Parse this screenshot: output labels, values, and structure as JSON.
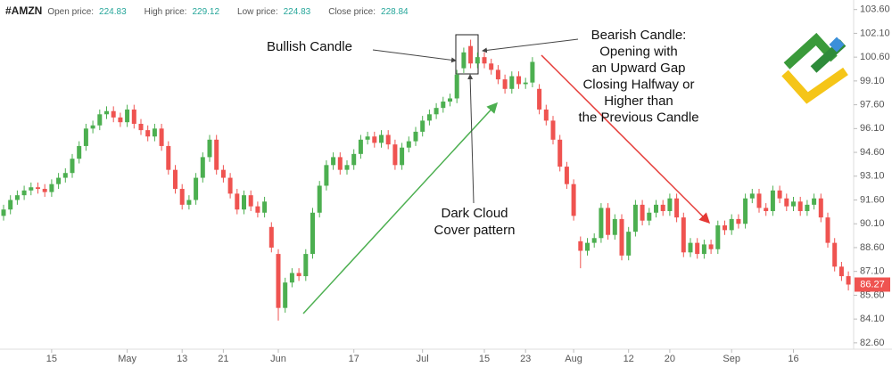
{
  "chart_data": {
    "type": "candlestick",
    "symbol": "#AMZN",
    "header": [
      {
        "label": "Open price:",
        "value": 224.83
      },
      {
        "label": "High price:",
        "value": 229.12
      },
      {
        "label": "Low price:",
        "value": 224.83
      },
      {
        "label": "Close price:",
        "value": 228.84
      }
    ],
    "categories": [
      null,
      null,
      null,
      null,
      null,
      null,
      null,
      "15",
      null,
      null,
      null,
      null,
      null,
      null,
      null,
      null,
      null,
      null,
      "May",
      null,
      null,
      null,
      null,
      null,
      null,
      null,
      "13",
      null,
      null,
      null,
      null,
      null,
      "21",
      null,
      null,
      null,
      null,
      null,
      null,
      null,
      "Jun",
      null,
      null,
      null,
      null,
      null,
      null,
      null,
      null,
      null,
      null,
      "17",
      null,
      null,
      null,
      null,
      null,
      null,
      null,
      null,
      null,
      "Jul",
      null,
      null,
      null,
      null,
      null,
      null,
      null,
      null,
      "15",
      null,
      null,
      null,
      null,
      null,
      "23",
      null,
      null,
      null,
      null,
      null,
      null,
      "Aug",
      null,
      null,
      null,
      null,
      null,
      null,
      null,
      "12",
      null,
      null,
      null,
      null,
      null,
      "20",
      null,
      null,
      null,
      null,
      null,
      null,
      null,
      null,
      "Sep",
      null,
      null,
      null,
      null,
      null,
      null,
      null,
      null,
      "16",
      null,
      null,
      null,
      null,
      null,
      null,
      null,
      null
    ],
    "open": [
      90.6,
      91.0,
      91.6,
      91.9,
      92.2,
      92.4,
      92.3,
      92.1,
      92.6,
      93.0,
      93.3,
      94.2,
      95.0,
      96.1,
      96.3,
      97.0,
      97.2,
      96.8,
      96.5,
      97.3,
      96.4,
      96.0,
      95.6,
      96.1,
      95.0,
      93.5,
      92.3,
      91.3,
      91.6,
      93.0,
      94.3,
      95.4,
      93.5,
      93.0,
      92.0,
      91.0,
      91.9,
      91.2,
      90.8,
      89.9,
      88.2,
      84.8,
      86.4,
      87.0,
      86.8,
      88.2,
      90.8,
      92.5,
      93.8,
      94.3,
      93.5,
      93.8,
      94.5,
      95.4,
      95.6,
      95.2,
      95.7,
      95.1,
      93.8,
      94.9,
      95.3,
      95.9,
      96.6,
      97.0,
      97.4,
      97.8,
      98.0,
      99.9,
      101.3,
      100.2,
      100.6,
      100.2,
      99.8,
      99.2,
      98.6,
      99.4,
      98.9,
      99.0,
      98.6,
      97.3,
      96.6,
      95.4,
      93.7,
      92.6,
      89.0,
      88.4,
      88.9,
      89.2,
      91.1,
      89.4,
      90.4,
      88.1,
      89.6,
      91.3,
      90.3,
      90.8,
      91.3,
      90.9,
      91.7,
      90.5,
      88.3,
      88.9,
      88.2,
      88.8,
      88.5,
      90.0,
      89.7,
      90.4,
      90.1,
      91.7,
      92.0,
      91.1,
      90.9,
      92.2,
      91.7,
      91.2,
      91.5,
      90.9,
      91.3,
      91.7,
      90.5,
      88.9,
      87.4,
      86.8
    ],
    "high": [
      91.3,
      91.9,
      92.2,
      92.5,
      92.7,
      92.7,
      92.6,
      92.9,
      93.3,
      93.6,
      94.5,
      95.3,
      96.4,
      96.6,
      97.3,
      97.5,
      97.5,
      97.1,
      97.6,
      97.6,
      96.7,
      96.3,
      96.4,
      96.4,
      95.3,
      93.8,
      92.6,
      91.9,
      93.3,
      94.6,
      95.7,
      95.7,
      93.8,
      93.3,
      92.3,
      92.2,
      92.2,
      91.5,
      91.8,
      90.2,
      88.5,
      86.7,
      87.3,
      87.3,
      88.5,
      91.1,
      92.8,
      94.1,
      94.6,
      94.6,
      94.1,
      94.8,
      95.7,
      95.9,
      95.9,
      96.0,
      96.0,
      95.4,
      95.2,
      95.6,
      96.2,
      96.9,
      97.3,
      97.7,
      98.1,
      98.3,
      99.8,
      101.2,
      101.7,
      100.9,
      100.9,
      100.5,
      100.1,
      99.5,
      99.7,
      99.7,
      99.3,
      100.6,
      98.9,
      97.6,
      96.9,
      95.7,
      94.0,
      92.9,
      89.3,
      89.2,
      89.5,
      91.4,
      91.4,
      90.7,
      90.7,
      89.9,
      91.6,
      91.6,
      91.1,
      91.6,
      91.6,
      92.0,
      92.0,
      90.8,
      89.2,
      89.2,
      89.1,
      89.1,
      90.3,
      90.3,
      90.7,
      90.7,
      92.0,
      92.3,
      92.3,
      91.4,
      92.5,
      92.5,
      92.0,
      91.8,
      91.8,
      91.6,
      92.0,
      92.0,
      90.8,
      89.2,
      87.7,
      87.1
    ],
    "low": [
      90.3,
      90.7,
      91.3,
      91.6,
      91.9,
      92.0,
      91.8,
      91.8,
      92.3,
      92.7,
      93.0,
      93.9,
      94.7,
      95.8,
      96.0,
      96.7,
      96.5,
      96.2,
      96.2,
      96.1,
      95.7,
      95.3,
      95.3,
      94.7,
      93.2,
      92.0,
      91.0,
      91.0,
      91.3,
      92.7,
      94.0,
      93.2,
      92.7,
      91.7,
      90.7,
      90.7,
      90.9,
      90.5,
      90.5,
      88.3,
      84.0,
      84.5,
      86.1,
      86.5,
      86.5,
      87.9,
      90.5,
      92.2,
      93.5,
      93.2,
      93.2,
      93.5,
      94.2,
      95.1,
      94.9,
      94.9,
      94.8,
      93.5,
      93.5,
      94.6,
      95.0,
      95.6,
      96.3,
      96.7,
      97.1,
      97.5,
      97.7,
      99.6,
      99.9,
      99.9,
      99.9,
      99.5,
      98.9,
      98.3,
      98.3,
      98.6,
      98.6,
      98.7,
      97.0,
      96.3,
      95.1,
      93.4,
      92.3,
      90.3,
      87.3,
      88.1,
      88.6,
      88.9,
      89.1,
      89.1,
      87.8,
      87.8,
      89.3,
      90.0,
      90.0,
      90.5,
      90.6,
      90.6,
      90.2,
      88.0,
      88.0,
      87.9,
      87.9,
      88.2,
      88.2,
      89.4,
      89.4,
      89.8,
      89.8,
      91.4,
      90.8,
      90.6,
      90.6,
      91.4,
      90.9,
      90.9,
      90.6,
      90.6,
      91.0,
      90.2,
      88.6,
      87.1,
      86.5,
      85.9
    ],
    "close": [
      91.0,
      91.6,
      91.9,
      92.2,
      92.4,
      92.3,
      92.1,
      92.6,
      93.0,
      93.3,
      94.2,
      95.0,
      96.1,
      96.3,
      97.0,
      97.2,
      96.8,
      96.5,
      97.3,
      96.4,
      96.0,
      95.6,
      96.1,
      95.0,
      93.5,
      92.3,
      91.3,
      91.6,
      93.0,
      94.3,
      95.4,
      93.5,
      93.0,
      92.0,
      91.0,
      91.9,
      91.2,
      90.8,
      91.5,
      88.6,
      84.8,
      86.4,
      87.0,
      86.8,
      88.2,
      90.8,
      92.5,
      93.8,
      94.3,
      93.5,
      93.8,
      94.5,
      95.4,
      95.6,
      95.2,
      95.7,
      95.1,
      93.8,
      94.9,
      95.3,
      95.9,
      96.6,
      97.0,
      97.4,
      97.8,
      98.0,
      99.5,
      100.9,
      100.2,
      100.6,
      100.2,
      99.8,
      99.2,
      98.6,
      99.4,
      98.9,
      99.0,
      100.3,
      97.3,
      96.6,
      95.4,
      93.7,
      92.6,
      90.6,
      88.4,
      88.9,
      89.2,
      91.1,
      89.4,
      90.4,
      88.1,
      89.6,
      91.3,
      90.3,
      90.8,
      91.3,
      90.9,
      91.7,
      90.5,
      88.3,
      88.9,
      88.2,
      88.8,
      88.5,
      90.0,
      89.7,
      90.4,
      90.1,
      91.7,
      92.0,
      91.1,
      90.9,
      92.2,
      91.7,
      91.2,
      91.5,
      90.9,
      91.3,
      91.7,
      90.5,
      88.9,
      87.4,
      86.8,
      86.27
    ],
    "up_color": "#4caf50",
    "down_color": "#ef5350",
    "ylim": [
      82.2,
      104.2
    ],
    "yticks": [
      {
        "value": 82.6,
        "label": "82.60"
      },
      {
        "value": 84.1,
        "label": "84.10"
      },
      {
        "value": 85.6,
        "label": "85.60"
      },
      {
        "value": 87.1,
        "label": "87.10"
      },
      {
        "value": 88.6,
        "label": "88.60"
      },
      {
        "value": 90.1,
        "label": "90.10"
      },
      {
        "value": 91.6,
        "label": "91.60"
      },
      {
        "value": 93.1,
        "label": "93.10"
      },
      {
        "value": 94.6,
        "label": "94.60"
      },
      {
        "value": 96.1,
        "label": "96.10"
      },
      {
        "value": 97.6,
        "label": "97.60"
      },
      {
        "value": 99.1,
        "label": "99.10"
      },
      {
        "value": 100.6,
        "label": "100.60"
      },
      {
        "value": 102.1,
        "label": "102.10"
      },
      {
        "value": 103.6,
        "label": "103.60"
      }
    ],
    "annotations": {
      "bullish": "Bullish Candle",
      "bearish": [
        "Bearish Candle:",
        "Opening with",
        "an Upward Gap",
        "Closing Halfway or",
        "Higher than",
        "the Previous Candle"
      ],
      "pattern": [
        "Dark Cloud",
        "Cover pattern"
      ]
    }
  }
}
